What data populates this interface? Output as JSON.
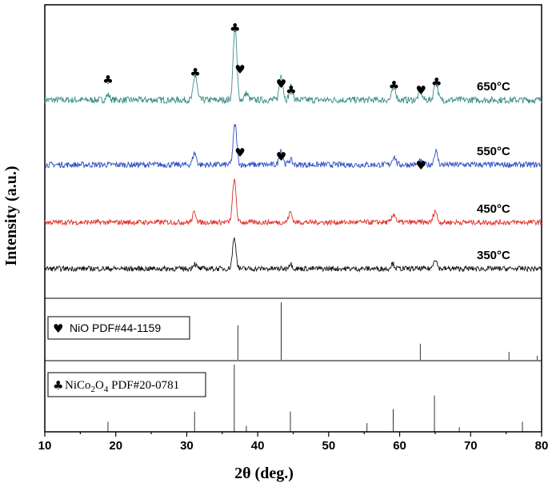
{
  "chart_data": {
    "type": "line",
    "xlabel": "2θ (deg.)",
    "ylabel": "Intensity (a.u.)",
    "xlim": [
      10,
      80
    ],
    "x_ticks": [
      "10",
      "20",
      "30",
      "40",
      "50",
      "60",
      "70",
      "80"
    ],
    "colors": {
      "650": "#3a8f8a",
      "550": "#2f4fc4",
      "450": "#e0302a",
      "350": "#111111"
    },
    "series": [
      {
        "name": "650°C",
        "color_key": "650",
        "baseline": 0.45,
        "noise": 0.09,
        "peaks": [
          [
            18.9,
            0.15
          ],
          [
            31.2,
            0.75
          ],
          [
            36.8,
            2.2
          ],
          [
            38.4,
            0.2
          ],
          [
            43.3,
            0.75
          ],
          [
            44.7,
            0.4
          ],
          [
            59.2,
            0.45
          ],
          [
            62.9,
            0.25
          ],
          [
            65.1,
            0.6
          ]
        ]
      },
      {
        "name": "550°C",
        "color_key": "550",
        "baseline": 0.42,
        "noise": 0.08,
        "peaks": [
          [
            31.1,
            0.35
          ],
          [
            36.8,
            1.2
          ],
          [
            43.3,
            0.45
          ],
          [
            44.6,
            0.15
          ],
          [
            59.2,
            0.25
          ],
          [
            62.9,
            0.1
          ],
          [
            65.1,
            0.4
          ]
        ]
      },
      {
        "name": "450°C",
        "color_key": "450",
        "baseline": 0.35,
        "noise": 0.07,
        "peaks": [
          [
            31.1,
            0.3
          ],
          [
            36.7,
            1.25
          ],
          [
            44.6,
            0.3
          ],
          [
            59.2,
            0.25
          ],
          [
            65.0,
            0.35
          ]
        ]
      },
      {
        "name": "350°C",
        "color_key": "350",
        "baseline": 0.3,
        "noise": 0.07,
        "peaks": [
          [
            31.1,
            0.15
          ],
          [
            36.7,
            0.9
          ],
          [
            44.6,
            0.15
          ],
          [
            59.0,
            0.15
          ],
          [
            65.0,
            0.3
          ]
        ]
      }
    ],
    "markers": [
      {
        "series": "650°C",
        "symbol": "♣",
        "x": 18.9
      },
      {
        "series": "650°C",
        "symbol": "♣",
        "x": 31.2
      },
      {
        "series": "650°C",
        "symbol": "♣",
        "x": 36.8
      },
      {
        "series": "650°C",
        "symbol": "♥",
        "x": 37.5
      },
      {
        "series": "650°C",
        "symbol": "♥",
        "x": 43.3
      },
      {
        "series": "650°C",
        "symbol": "♣",
        "x": 44.7
      },
      {
        "series": "650°C",
        "symbol": "♣",
        "x": 59.2
      },
      {
        "series": "650°C",
        "symbol": "♥",
        "x": 63.0
      },
      {
        "series": "650°C",
        "symbol": "♣",
        "x": 65.2
      },
      {
        "series": "550°C",
        "symbol": "♥",
        "x": 37.5
      },
      {
        "series": "550°C",
        "symbol": "♥",
        "x": 43.3
      },
      {
        "series": "550°C",
        "symbol": "♥",
        "x": 63.0
      }
    ],
    "references": [
      {
        "name": "NiO PDF#44-1159",
        "sticks": [
          [
            37.2,
            0.6
          ],
          [
            43.3,
            1.0
          ],
          [
            62.9,
            0.28
          ],
          [
            75.4,
            0.14
          ],
          [
            79.4,
            0.07
          ]
        ]
      },
      {
        "name": "NiCo2O4 PDF#20-0781",
        "sticks": [
          [
            18.9,
            0.15
          ],
          [
            31.1,
            0.3
          ],
          [
            36.7,
            1.0
          ],
          [
            38.4,
            0.09
          ],
          [
            44.6,
            0.3
          ],
          [
            55.4,
            0.13
          ],
          [
            59.1,
            0.34
          ],
          [
            64.9,
            0.54
          ],
          [
            68.4,
            0.07
          ],
          [
            77.3,
            0.15
          ]
        ]
      }
    ]
  }
}
